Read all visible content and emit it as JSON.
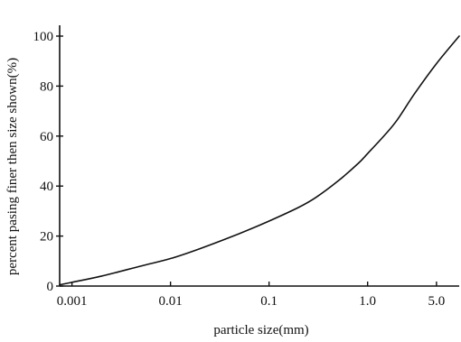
{
  "chart_data": {
    "type": "line",
    "title": "",
    "xlabel": "particle size(mm)",
    "ylabel": "percent pasing finer then size shown(%)",
    "x_scale": "log",
    "xlim": [
      0.00075,
      8.5
    ],
    "ylim": [
      0,
      100
    ],
    "x_ticks": [
      0.001,
      0.01,
      0.1,
      1.0,
      5.0
    ],
    "x_tick_labels": [
      "0.001",
      "0.01",
      "0.1",
      "1.0",
      "5.0"
    ],
    "y_ticks": [
      0,
      20,
      40,
      60,
      80,
      100
    ],
    "y_tick_labels": [
      "0",
      "20",
      "40",
      "60",
      "80",
      "100"
    ],
    "grid": false,
    "series": [
      {
        "x": [
          0.00075,
          0.001,
          0.002,
          0.005,
          0.01,
          0.02,
          0.05,
          0.1,
          0.2,
          0.3,
          0.5,
          0.8,
          1.0,
          1.5,
          2.0,
          3.0,
          5.0,
          8.5
        ],
        "y": [
          0.5,
          1.5,
          4,
          8,
          11,
          15,
          21,
          26,
          31.5,
          35.5,
          42,
          49,
          53,
          60.5,
          66.5,
          77,
          89,
          100
        ]
      }
    ]
  }
}
